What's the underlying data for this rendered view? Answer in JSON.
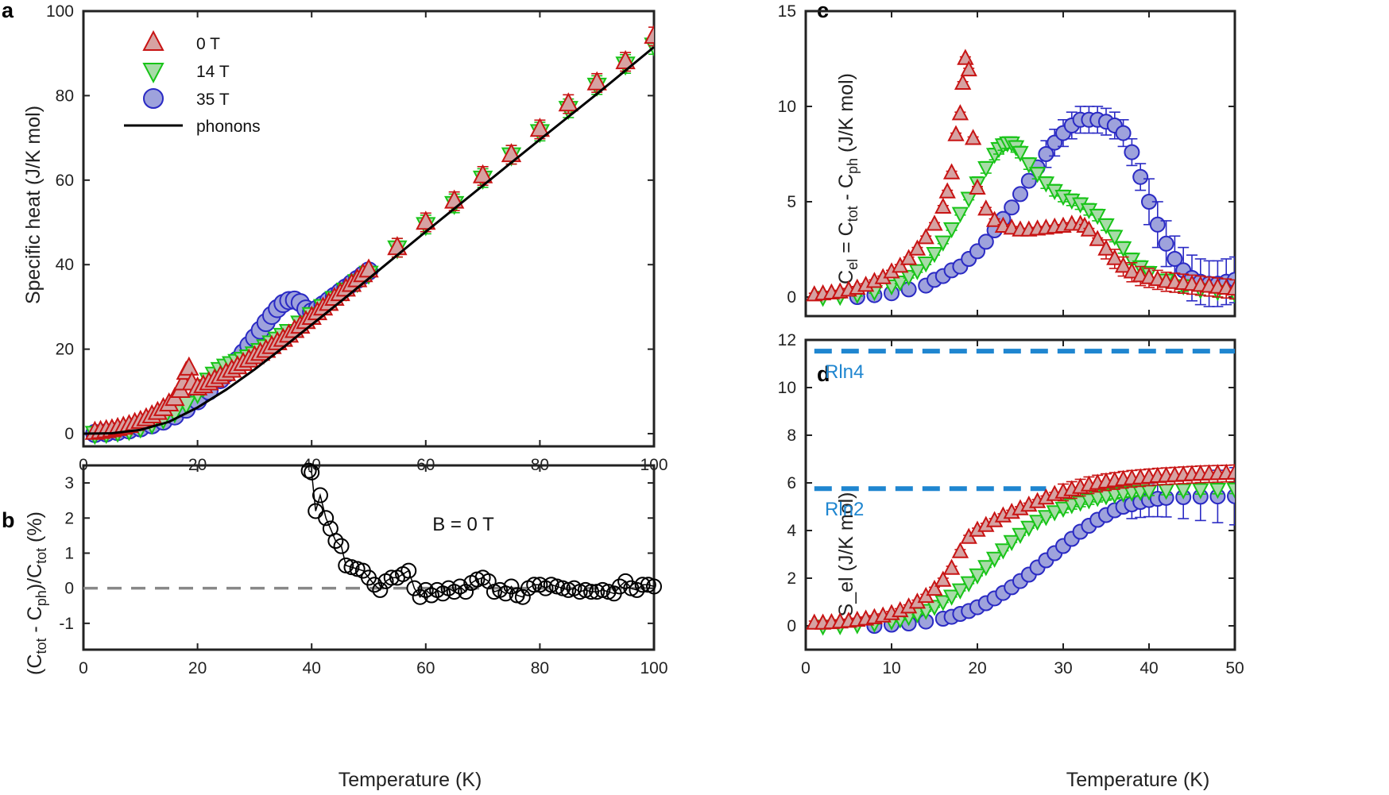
{
  "colors": {
    "red_edge": "#c81414",
    "red_fill": "#d6a2a2",
    "green_edge": "#18c418",
    "green_fill": "#a8dba8",
    "blue_edge": "#2a2ac4",
    "blue_fill": "#9ea2dc",
    "phonon": "#000000",
    "rln": "#1f86d0",
    "zero_line": "#888888"
  },
  "chart_data": [
    {
      "panel": "a",
      "type": "scatter",
      "xlabel": "Temperature (K)",
      "ylabel": "Specific heat (J/K mol)",
      "xlim": [
        0,
        100
      ],
      "ylim": [
        -3,
        100
      ],
      "xticks": [
        "0",
        "20",
        "40",
        "60",
        "80",
        "100"
      ],
      "yticks": [
        "0",
        "20",
        "40",
        "60",
        "80",
        "100"
      ],
      "legend": {
        "position": "top-left",
        "entries": [
          "0 T",
          "14 T",
          "35 T",
          "phonons"
        ]
      },
      "series": [
        {
          "name": "0 T",
          "marker": "triangle-up",
          "x": [
            2,
            3,
            4,
            5,
            6,
            7,
            8,
            9,
            10,
            11,
            12,
            13,
            14,
            15,
            16,
            17,
            17.5,
            18,
            18.5,
            19,
            20,
            21,
            22,
            23,
            24,
            25,
            26,
            27,
            28,
            29,
            30,
            31,
            32,
            33,
            34,
            35,
            36,
            37,
            38,
            39,
            40,
            41,
            42,
            43,
            44,
            45,
            46,
            47,
            48,
            49,
            50,
            55,
            60,
            65,
            70,
            75,
            80,
            85,
            90,
            95,
            100
          ],
          "y": [
            0.3,
            0.5,
            0.7,
            0.9,
            1.2,
            1.5,
            1.9,
            2.4,
            2.9,
            3.5,
            4.2,
            5.0,
            5.9,
            7.0,
            8.3,
            10.2,
            12,
            14.5,
            15.5,
            12,
            10.8,
            11.3,
            12,
            12.7,
            13.5,
            14.2,
            15,
            15.8,
            16.6,
            17.4,
            18.2,
            19,
            19.7,
            20.6,
            21.5,
            22.3,
            23.3,
            24.4,
            25.4,
            26.5,
            27.5,
            28.6,
            29.7,
            30.8,
            32,
            33.1,
            34.2,
            35.3,
            36.4,
            37.6,
            38.7,
            44,
            50,
            55,
            61,
            66,
            72,
            78,
            83,
            88,
            94
          ]
        },
        {
          "name": "14 T",
          "marker": "triangle-down",
          "x": [
            2,
            4,
            6,
            8,
            10,
            12,
            14,
            16,
            18,
            20,
            21,
            22,
            23,
            24,
            25,
            26,
            27,
            28,
            29,
            30,
            31,
            32,
            33,
            34,
            35,
            36,
            38,
            40,
            42,
            44,
            46,
            48,
            50,
            55,
            60,
            65,
            70,
            75,
            80,
            85,
            90,
            95,
            100
          ],
          "y": [
            0.1,
            0.3,
            0.6,
            1.0,
            1.6,
            2.5,
            3.7,
            5.2,
            7.2,
            9.7,
            11.2,
            12.7,
            14.1,
            15.2,
            16,
            16.6,
            17.1,
            17.6,
            18.2,
            18.9,
            19.7,
            20.6,
            21.5,
            22.4,
            23.3,
            24.2,
            26.2,
            28.2,
            30.1,
            32,
            34,
            36,
            38,
            44,
            49.5,
            54.5,
            60.5,
            66,
            71.5,
            77,
            82.5,
            87.5,
            92
          ]
        },
        {
          "name": "35 T",
          "marker": "circle",
          "x": [
            2,
            4,
            6,
            8,
            10,
            12,
            14,
            16,
            18,
            20,
            22,
            24,
            25,
            26,
            27,
            28,
            29,
            30,
            31,
            32,
            33,
            34,
            35,
            36,
            37,
            38,
            39,
            40,
            41,
            42,
            43,
            44,
            45,
            46,
            47,
            48,
            49,
            50
          ],
          "y": [
            0.05,
            0.2,
            0.5,
            0.9,
            1.4,
            2.1,
            3.0,
            4.2,
            5.8,
            7.8,
            10.1,
            12.8,
            14.2,
            15.8,
            17.4,
            19.1,
            20.9,
            22.7,
            24.5,
            26.3,
            28,
            29.6,
            30.8,
            31.5,
            31.6,
            31,
            29.5,
            28.8,
            29.5,
            30.5,
            31.5,
            32.5,
            33.5,
            34.5,
            35.5,
            36.5,
            37.5,
            38.5
          ]
        }
      ],
      "phonons": {
        "x": [
          0,
          5,
          10,
          15,
          20,
          25,
          30,
          35,
          40,
          45,
          50,
          60,
          70,
          80,
          90,
          100
        ],
        "y": [
          0,
          0.1,
          0.9,
          2.8,
          6.2,
          10.4,
          15.2,
          20.4,
          25.8,
          31.2,
          36.7,
          47.8,
          58.7,
          69.6,
          80.4,
          91.5
        ]
      }
    },
    {
      "panel": "b",
      "type": "line",
      "xlabel": "Temperature (K)",
      "ylabel": "(C_tot - C_ph)/C_tot (%)",
      "xlim": [
        0,
        100
      ],
      "ylim": [
        -1.75,
        3.5
      ],
      "xticks": [
        "0",
        "20",
        "40",
        "60",
        "80",
        "100"
      ],
      "yticks": [
        "-1",
        "0",
        "1",
        "2",
        "3"
      ],
      "annotation": "B = 0 T",
      "x": [
        39.5,
        40,
        40.7,
        41.5,
        42.5,
        43.3,
        44.2,
        45.2,
        46,
        47,
        48,
        49,
        50,
        51,
        52,
        53,
        54,
        55,
        56,
        57,
        58,
        59,
        60,
        61,
        62,
        63,
        64,
        65,
        66,
        67,
        68,
        69,
        70,
        71,
        72,
        73,
        74,
        75,
        76,
        77,
        78,
        79,
        80,
        81,
        82,
        83,
        84,
        85,
        86,
        87,
        88,
        89,
        90,
        91,
        92,
        93,
        94,
        95,
        96,
        97,
        98,
        99,
        100
      ],
      "y": [
        3.35,
        3.3,
        2.2,
        2.65,
        2.0,
        1.7,
        1.35,
        1.2,
        0.65,
        0.6,
        0.55,
        0.5,
        0.3,
        0.1,
        -0.05,
        0.2,
        0.3,
        0.3,
        0.4,
        0.5,
        0.0,
        -0.25,
        -0.05,
        -0.2,
        -0.05,
        -0.15,
        0.0,
        -0.1,
        0.05,
        -0.1,
        0.15,
        0.25,
        0.3,
        0.2,
        -0.1,
        -0.05,
        -0.15,
        0.05,
        -0.2,
        -0.25,
        0.0,
        0.1,
        0.1,
        0.0,
        0.1,
        0.05,
        0.0,
        -0.05,
        0.0,
        -0.1,
        -0.05,
        -0.1,
        -0.1,
        -0.05,
        -0.1,
        -0.15,
        0.05,
        0.2,
        0.0,
        -0.05,
        0.1,
        0.1,
        0.05
      ]
    },
    {
      "panel": "c",
      "type": "scatter",
      "xlabel": "",
      "ylabel": "C_el = C_tot - C_ph (J/K mol)",
      "xlim": [
        0,
        50
      ],
      "ylim": [
        -1,
        15
      ],
      "yticks": [
        "0",
        "5",
        "10",
        "15"
      ],
      "series": [
        {
          "name": "0 T",
          "marker": "triangle-up",
          "x": [
            1,
            2,
            3,
            4,
            5,
            6,
            7,
            8,
            9,
            10,
            11,
            12,
            13,
            14,
            15,
            16,
            16.5,
            17,
            17.5,
            18,
            18.3,
            18.6,
            19,
            19.5,
            20,
            21,
            22,
            23,
            24,
            25,
            26,
            27,
            28,
            29,
            30,
            31,
            32,
            32.5,
            33,
            34,
            35,
            36,
            37,
            38,
            39,
            40,
            41,
            42,
            43,
            44,
            45,
            46,
            47,
            48,
            49,
            50
          ],
          "y": [
            0.1,
            0.15,
            0.2,
            0.25,
            0.35,
            0.45,
            0.6,
            0.8,
            1.0,
            1.3,
            1.6,
            2.0,
            2.5,
            3.1,
            3.8,
            4.7,
            5.5,
            6.5,
            8.5,
            9.6,
            11.2,
            12.5,
            11.9,
            8.3,
            5.7,
            4.6,
            4.0,
            3.7,
            3.6,
            3.5,
            3.5,
            3.55,
            3.6,
            3.65,
            3.7,
            3.8,
            3.8,
            3.7,
            3.5,
            3.0,
            2.5,
            2.0,
            1.6,
            1.3,
            1.1,
            1.0,
            0.9,
            0.8,
            0.75,
            0.7,
            0.65,
            0.6,
            0.55,
            0.5,
            0.45,
            0.4
          ]
        },
        {
          "name": "14 T",
          "marker": "triangle-down",
          "x": [
            2,
            4,
            6,
            8,
            10,
            11,
            12,
            13,
            14,
            15,
            16,
            17,
            18,
            19,
            20,
            21,
            22,
            22.5,
            23,
            23.5,
            24,
            24.5,
            25,
            26,
            27,
            28,
            29,
            30,
            31,
            32,
            33,
            34,
            35,
            36,
            37,
            38,
            39,
            40,
            42,
            44,
            46,
            48,
            50
          ],
          "y": [
            0.0,
            0.05,
            0.15,
            0.3,
            0.6,
            0.8,
            1.1,
            1.4,
            1.8,
            2.3,
            2.9,
            3.6,
            4.4,
            5.2,
            6.0,
            6.8,
            7.5,
            7.8,
            8.0,
            8.1,
            8.1,
            7.9,
            7.6,
            7.0,
            6.5,
            6.0,
            5.6,
            5.3,
            5.1,
            4.9,
            4.6,
            4.3,
            3.8,
            3.2,
            2.6,
            2.0,
            1.6,
            1.3,
            0.9,
            0.6,
            0.4,
            0.3,
            0.2
          ]
        },
        {
          "name": "35 T",
          "marker": "circle",
          "x": [
            6,
            8,
            10,
            12,
            14,
            15,
            16,
            17,
            18,
            19,
            20,
            21,
            22,
            23,
            24,
            25,
            26,
            27,
            28,
            29,
            30,
            31,
            32,
            33,
            34,
            35,
            36,
            37,
            38,
            39,
            40,
            41,
            42,
            43,
            44,
            45,
            46,
            47,
            48,
            49,
            50
          ],
          "y": [
            0.0,
            0.1,
            0.2,
            0.4,
            0.6,
            0.9,
            1.1,
            1.4,
            1.6,
            2.0,
            2.4,
            2.9,
            3.5,
            4.1,
            4.7,
            5.4,
            6.1,
            6.8,
            7.5,
            8.1,
            8.6,
            9.0,
            9.3,
            9.3,
            9.3,
            9.2,
            9.0,
            8.6,
            7.6,
            6.3,
            5.0,
            3.8,
            2.8,
            2.0,
            1.4,
            1.0,
            0.8,
            0.7,
            0.7,
            0.8,
            0.9
          ]
        }
      ]
    },
    {
      "panel": "d",
      "type": "scatter",
      "xlabel": "Temperature (K)",
      "ylabel": "S_el (J/K mol)",
      "xlim": [
        0,
        50
      ],
      "ylim": [
        -1,
        12
      ],
      "xticks": [
        "0",
        "10",
        "20",
        "30",
        "40",
        "50"
      ],
      "yticks": [
        "0",
        "2",
        "4",
        "6",
        "8",
        "10",
        "12"
      ],
      "reference_lines": [
        {
          "label": "Rln4",
          "y": 11.53,
          "x_start": 1,
          "x_end": 50
        },
        {
          "label": "Rln2",
          "y": 5.76,
          "x_start": 1,
          "x_end": 28
        }
      ],
      "series": [
        {
          "name": "0 T",
          "marker": "triangle-up",
          "x": [
            1,
            2,
            3,
            4,
            5,
            6,
            7,
            8,
            9,
            10,
            11,
            12,
            13,
            14,
            15,
            16,
            17,
            18,
            19,
            20,
            21,
            22,
            23,
            24,
            25,
            26,
            27,
            28,
            29,
            30,
            31,
            32,
            33,
            34,
            35,
            36,
            37,
            38,
            39,
            40,
            41,
            42,
            43,
            44,
            45,
            46,
            47,
            48,
            49,
            50
          ],
          "y": [
            0.1,
            0.1,
            0.12,
            0.15,
            0.18,
            0.22,
            0.27,
            0.33,
            0.4,
            0.5,
            0.62,
            0.78,
            0.98,
            1.22,
            1.52,
            1.9,
            2.4,
            3.1,
            3.7,
            4.0,
            4.2,
            4.4,
            4.6,
            4.75,
            4.9,
            5.05,
            5.2,
            5.35,
            5.5,
            5.6,
            5.7,
            5.8,
            5.9,
            5.97,
            6.03,
            6.08,
            6.13,
            6.17,
            6.2,
            6.23,
            6.26,
            6.28,
            6.3,
            6.32,
            6.34,
            6.36,
            6.37,
            6.38,
            6.39,
            6.4
          ]
        },
        {
          "name": "14 T",
          "marker": "triangle-down",
          "x": [
            2,
            4,
            6,
            8,
            10,
            11,
            12,
            13,
            14,
            15,
            16,
            17,
            18,
            19,
            20,
            21,
            22,
            23,
            24,
            25,
            26,
            27,
            28,
            29,
            30,
            31,
            32,
            33,
            34,
            35,
            36,
            37,
            38,
            39,
            40,
            42,
            44,
            46,
            48,
            50
          ],
          "y": [
            0.0,
            0.02,
            0.06,
            0.12,
            0.22,
            0.3,
            0.4,
            0.52,
            0.66,
            0.83,
            1.03,
            1.26,
            1.52,
            1.82,
            2.15,
            2.5,
            2.85,
            3.2,
            3.55,
            3.85,
            4.15,
            4.4,
            4.6,
            4.8,
            4.95,
            5.1,
            5.2,
            5.3,
            5.4,
            5.47,
            5.53,
            5.58,
            5.62,
            5.65,
            5.67,
            5.7,
            5.72,
            5.73,
            5.74,
            5.75
          ]
        },
        {
          "name": "35 T",
          "marker": "circle",
          "x": [
            8,
            10,
            12,
            14,
            16,
            17,
            18,
            19,
            20,
            21,
            22,
            23,
            24,
            25,
            26,
            27,
            28,
            29,
            30,
            31,
            32,
            33,
            34,
            35,
            36,
            37,
            38,
            39,
            40,
            41,
            42,
            44,
            46,
            48,
            50
          ],
          "y": [
            0.0,
            0.05,
            0.1,
            0.18,
            0.3,
            0.38,
            0.5,
            0.62,
            0.78,
            0.95,
            1.15,
            1.38,
            1.62,
            1.88,
            2.15,
            2.45,
            2.75,
            3.05,
            3.35,
            3.65,
            3.95,
            4.2,
            4.45,
            4.65,
            4.85,
            5.0,
            5.1,
            5.2,
            5.28,
            5.33,
            5.37,
            5.4,
            5.42,
            5.43,
            5.44
          ]
        }
      ]
    }
  ]
}
